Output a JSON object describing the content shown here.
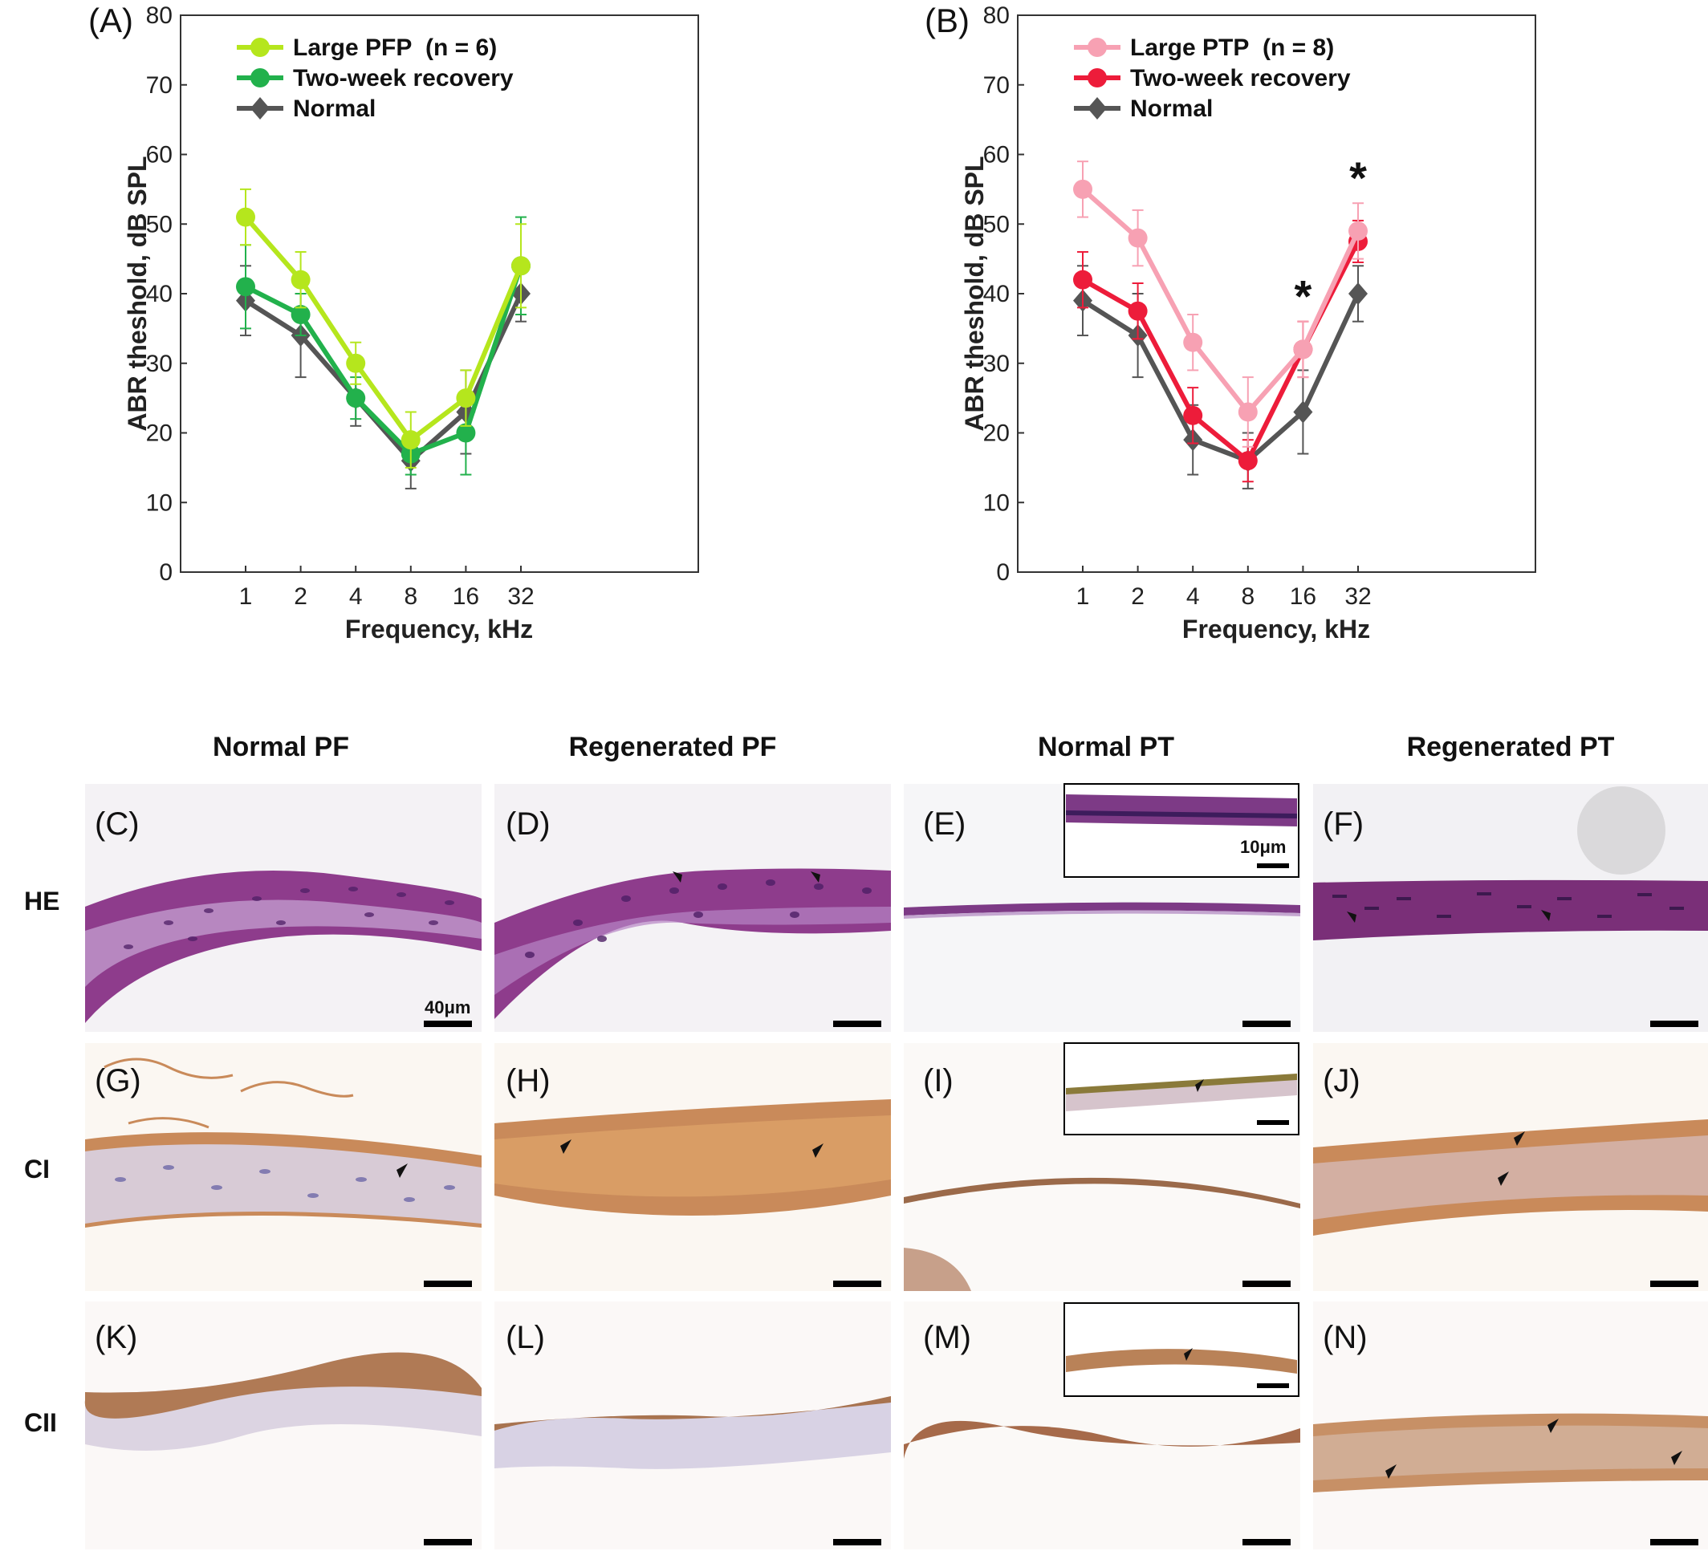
{
  "chart_data": [
    {
      "type": "line",
      "panel": "(A)",
      "x": [
        1,
        2,
        4,
        8,
        16,
        32
      ],
      "xscale": "log2",
      "xlabel": "Frequency, kHz",
      "ylabel": "ABR theshold, dB SPL",
      "ylim": [
        0,
        80
      ],
      "yticks": [
        0,
        10,
        20,
        30,
        40,
        50,
        60,
        70,
        80
      ],
      "legend_position": "top-center",
      "legend_note": "(n = 6)",
      "series": [
        {
          "name": "Large PFP",
          "color": "#b5e61d",
          "marker": "circle",
          "values": [
            51,
            42,
            30,
            19,
            25,
            44
          ],
          "errors": [
            4,
            4,
            3,
            4,
            4,
            6
          ]
        },
        {
          "name": "Two-week recovery",
          "color": "#22b14c",
          "marker": "circle",
          "values": [
            41,
            37,
            25,
            17,
            20,
            44
          ],
          "errors": [
            6,
            3,
            3,
            3,
            6,
            7
          ]
        },
        {
          "name": "Normal",
          "color": "#555555",
          "marker": "diamond",
          "values": [
            39,
            34,
            25,
            16,
            23,
            40
          ],
          "errors": [
            5,
            6,
            4,
            4,
            6,
            4
          ]
        }
      ],
      "annotations": []
    },
    {
      "type": "line",
      "panel": "(B)",
      "x": [
        1,
        2,
        4,
        8,
        16,
        32
      ],
      "xscale": "log2",
      "xlabel": "Frequency, kHz",
      "ylabel": "ABR theshold, dB SPL",
      "ylim": [
        0,
        80
      ],
      "yticks": [
        0,
        10,
        20,
        30,
        40,
        50,
        60,
        70,
        80
      ],
      "legend_position": "top-center",
      "legend_note": "(n = 8)",
      "series": [
        {
          "name": "Large PTP",
          "color": "#f7a1b3",
          "marker": "circle",
          "values": [
            55,
            48,
            33,
            23,
            32,
            49
          ],
          "errors": [
            4,
            4,
            4,
            5,
            4,
            4
          ]
        },
        {
          "name": "Two-week recovery",
          "color": "#ed1c3a",
          "marker": "circle",
          "values": [
            42,
            37.5,
            22.5,
            16,
            32,
            47.5
          ],
          "errors": [
            4,
            4,
            4,
            3,
            4,
            3
          ]
        },
        {
          "name": "Normal",
          "color": "#555555",
          "marker": "diamond",
          "values": [
            39,
            34,
            19,
            16,
            23,
            40
          ],
          "errors": [
            5,
            6,
            5,
            4,
            6,
            4
          ]
        }
      ],
      "annotations": [
        {
          "x": 16,
          "text": "*"
        },
        {
          "x": 32,
          "text": "*"
        }
      ]
    }
  ],
  "micrographs": {
    "columns": [
      "Normal PF",
      "Regenerated PF",
      "Normal PT",
      "Regenerated PT"
    ],
    "rows": [
      "HE",
      "CI",
      "CII"
    ],
    "panels": [
      [
        "(C)",
        "(D)",
        "(E)",
        "(F)"
      ],
      [
        "(G)",
        "(H)",
        "(I)",
        "(J)"
      ],
      [
        "(K)",
        "(L)",
        "(M)",
        "(N)"
      ]
    ],
    "scale_main": "40μm",
    "scale_inset": "10μm",
    "colors": {
      "he_tissue": "#8e3c8c",
      "he_dark": "#5a1f66",
      "ci_tissue": "#c98a5a",
      "cii_tissue": "#c79066",
      "nuclei": "#6f69a8",
      "stroma": "#e6dfe6"
    }
  }
}
